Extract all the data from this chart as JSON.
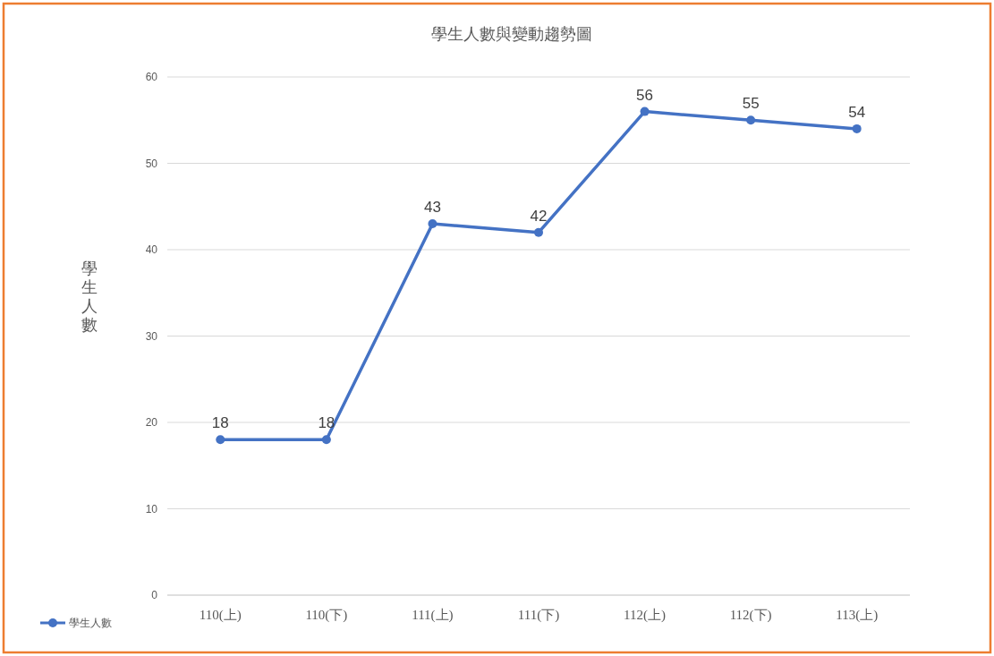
{
  "chart_data": {
    "type": "line",
    "title": "學生人數與變動趨勢圖",
    "ylabel": "學生人數",
    "categories": [
      "110(上)",
      "110(下)",
      "111(上)",
      "111(下)",
      "112(上)",
      "112(下)",
      "113(上)"
    ],
    "series": [
      {
        "name": "學生人數",
        "color": "#4472c4",
        "values": [
          18,
          18,
          43,
          42,
          56,
          55,
          54
        ]
      }
    ],
    "ylim": [
      0,
      60
    ],
    "yticks": [
      0,
      10,
      20,
      30,
      40,
      50,
      60
    ],
    "grid": "y",
    "legend": "bottom left",
    "marker": "circle",
    "data_labels": true
  }
}
